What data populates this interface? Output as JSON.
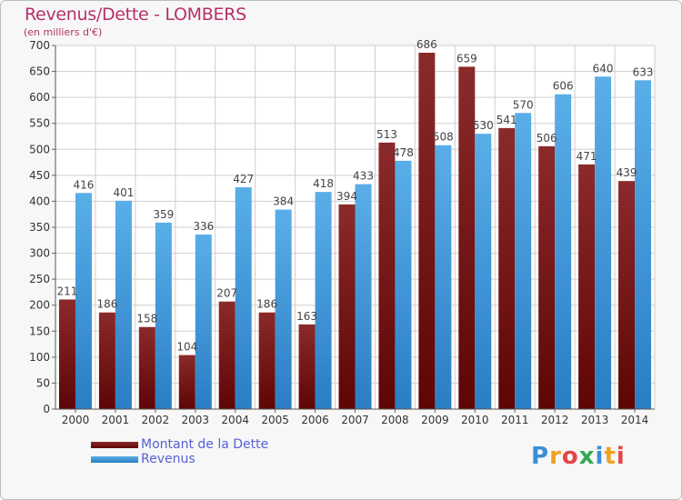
{
  "header": {
    "title": "Revenus/Dette - LOMBERS",
    "subtitle": "(en milliers d'€)"
  },
  "logo": {
    "text": "Proxiti"
  },
  "colors": {
    "dette_top": "#8b2a2a",
    "dette_bottom": "#5e0505",
    "revenus_top": "#5aaee8",
    "revenus_bottom": "#2b7dc4",
    "title": "#b5306a",
    "legend_text": "#5561d6"
  },
  "chart_data": {
    "type": "bar",
    "title": "Revenus/Dette - LOMBERS",
    "subtitle": "(en milliers d'€)",
    "categories": [
      "2000",
      "2001",
      "2002",
      "2003",
      "2004",
      "2005",
      "2006",
      "2007",
      "2008",
      "2009",
      "2010",
      "2011",
      "2012",
      "2013",
      "2014"
    ],
    "series": [
      {
        "name": "Montant de la Dette",
        "values": [
          211,
          186,
          158,
          104,
          207,
          186,
          163,
          394,
          513,
          686,
          659,
          541,
          506,
          471,
          439
        ]
      },
      {
        "name": "Revenus",
        "values": [
          416,
          401,
          359,
          336,
          427,
          384,
          418,
          433,
          478,
          508,
          530,
          570,
          606,
          640,
          633
        ]
      }
    ],
    "ylim": [
      0,
      700
    ],
    "yticks": [
      0,
      50,
      100,
      150,
      200,
      250,
      300,
      350,
      400,
      450,
      500,
      550,
      600,
      650,
      700
    ],
    "grid": true,
    "legend_position": "bottom-left"
  }
}
